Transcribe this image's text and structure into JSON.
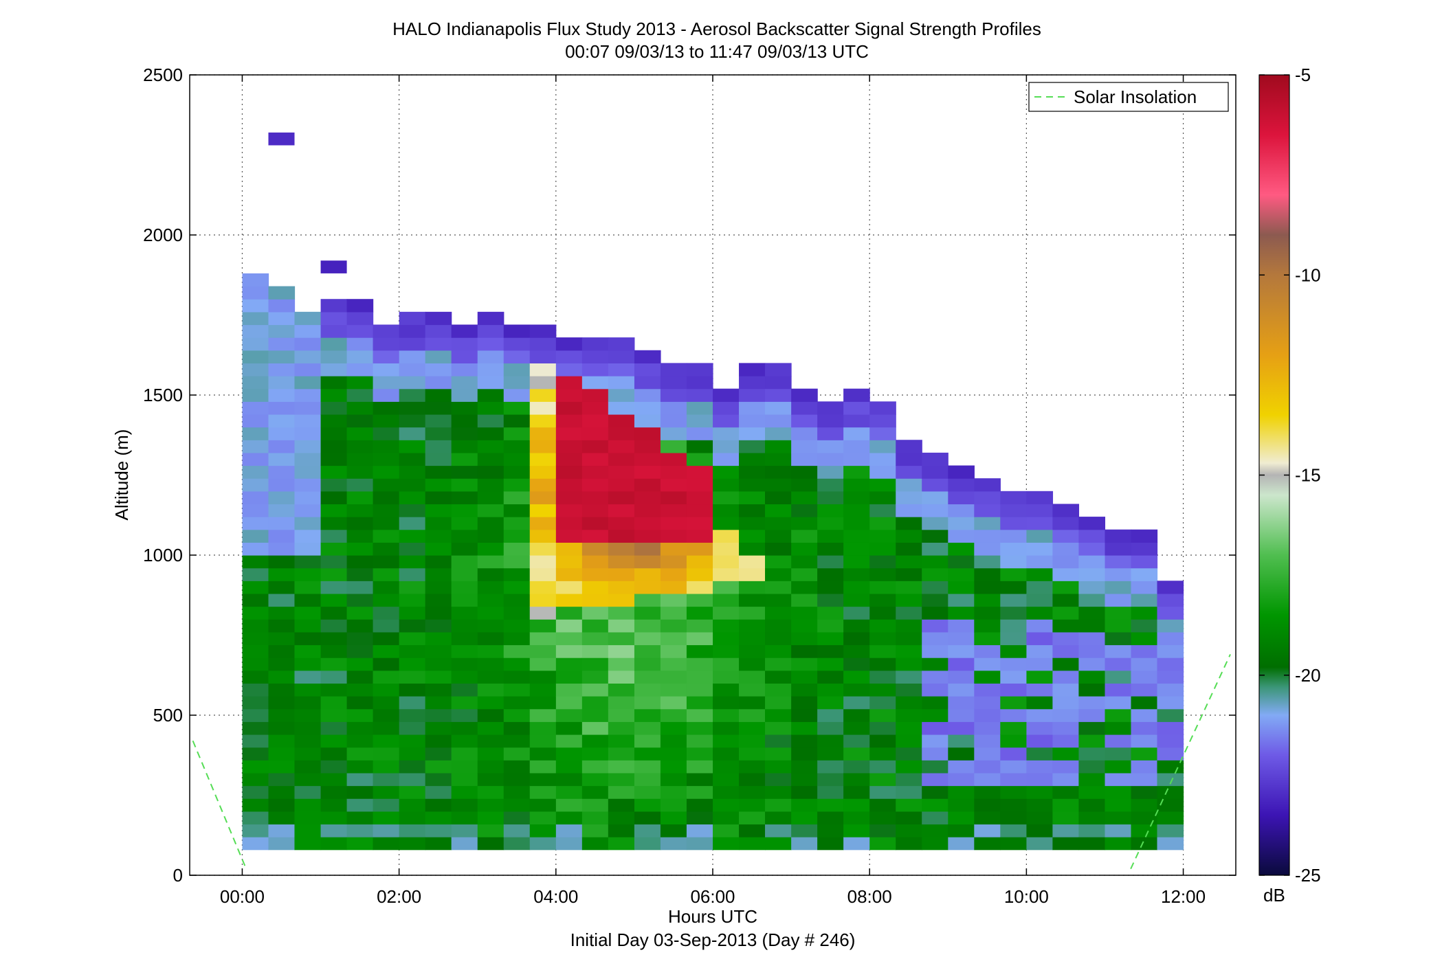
{
  "chart_data": {
    "type": "heatmap",
    "title": "HALO Indianapolis Flux Study 2013 - Aerosol Backscatter Signal Strength Profiles",
    "subtitle": "00:07 09/03/13 to 11:47 09/03/13  UTC",
    "xlabel": "Hours UTC",
    "xlabel2": "Initial Day 03-Sep-2013 (Day # 246)",
    "ylabel": "Altitude (m)",
    "xlim": [
      -0.67,
      12.67
    ],
    "ylim": [
      0,
      2500
    ],
    "x_ticks": [
      0,
      2,
      4,
      6,
      8,
      10,
      12
    ],
    "x_tick_labels": [
      "00:00",
      "02:00",
      "04:00",
      "06:00",
      "08:00",
      "10:00",
      "12:00"
    ],
    "y_ticks": [
      0,
      500,
      1000,
      1500,
      2000,
      2500
    ],
    "y_tick_labels": [
      "0",
      "500",
      "1000",
      "1500",
      "2000",
      "2500"
    ],
    "grid": true,
    "colorbar": {
      "label": "dB",
      "min": -25,
      "max": -5,
      "ticks": [
        -25,
        -20,
        -15,
        -10,
        -5
      ],
      "tick_labels": [
        "-25",
        "-20",
        "-15",
        "-10",
        "-5"
      ],
      "stops": [
        [
          -25,
          "#0a0a3c"
        ],
        [
          -23.5,
          "#3c14b4"
        ],
        [
          -22,
          "#6e5ae6"
        ],
        [
          -21,
          "#82aaf5"
        ],
        [
          -20.3,
          "#3c9678"
        ],
        [
          -19.8,
          "#006e00"
        ],
        [
          -18.5,
          "#009600"
        ],
        [
          -17,
          "#50be50"
        ],
        [
          -15.5,
          "#cce6cc"
        ],
        [
          -15,
          "#b4b4b4"
        ],
        [
          -14.7,
          "#f0ecd2"
        ],
        [
          -13.5,
          "#f0d200"
        ],
        [
          -12,
          "#e6a014"
        ],
        [
          -10,
          "#b4783c"
        ],
        [
          -9,
          "#8c5a50"
        ],
        [
          -8,
          "#ff5a82"
        ],
        [
          -6.5,
          "#dc143c"
        ],
        [
          -5,
          "#a00a1e"
        ]
      ]
    },
    "cells": {
      "time_step_hours": 0.3333,
      "altitude_step_m": 40,
      "altitude_start_m": 80,
      "profiles": [
        {
          "t": 0.167,
          "top": 1880
        },
        {
          "t": 0.5,
          "top": 1840
        },
        {
          "t": 0.833,
          "top": 1760
        },
        {
          "t": 1.167,
          "top": 1800
        },
        {
          "t": 1.5,
          "top": 1800
        },
        {
          "t": 1.833,
          "top": 1720
        },
        {
          "t": 2.167,
          "top": 1760
        },
        {
          "t": 2.5,
          "top": 1760
        },
        {
          "t": 2.833,
          "top": 1720
        },
        {
          "t": 3.167,
          "top": 1760
        },
        {
          "t": 3.5,
          "top": 1720
        },
        {
          "t": 3.833,
          "top": 1720
        },
        {
          "t": 4.167,
          "top": 1680
        },
        {
          "t": 4.5,
          "top": 1680
        },
        {
          "t": 4.833,
          "top": 1680
        },
        {
          "t": 5.167,
          "top": 1640
        },
        {
          "t": 5.5,
          "top": 1600
        },
        {
          "t": 5.833,
          "top": 1600
        },
        {
          "t": 6.167,
          "top": 1520
        },
        {
          "t": 6.5,
          "top": 1600
        },
        {
          "t": 6.833,
          "top": 1600
        },
        {
          "t": 7.167,
          "top": 1520
        },
        {
          "t": 7.5,
          "top": 1480
        },
        {
          "t": 7.833,
          "top": 1520
        },
        {
          "t": 8.167,
          "top": 1480
        },
        {
          "t": 8.5,
          "top": 1360
        },
        {
          "t": 8.833,
          "top": 1320
        },
        {
          "t": 9.167,
          "top": 1280
        },
        {
          "t": 9.5,
          "top": 1240
        },
        {
          "t": 9.833,
          "top": 1200
        },
        {
          "t": 10.167,
          "top": 1200
        },
        {
          "t": 10.5,
          "top": 1160
        },
        {
          "t": 10.833,
          "top": 1120
        },
        {
          "t": 11.167,
          "top": 1080
        },
        {
          "t": 11.5,
          "top": 1080
        },
        {
          "t": 11.833,
          "top": 920
        }
      ],
      "isolated": [
        {
          "t": 0.5,
          "alt": 2280,
          "db": -23
        },
        {
          "t": 1.167,
          "alt": 1880,
          "db": -23.2
        }
      ]
    },
    "series": [
      {
        "name": "Solar Insolation",
        "style": "dashed",
        "color": "#55dd55",
        "segments": [
          [
            [
              -0.63,
              420
            ],
            [
              0.05,
              20
            ]
          ],
          [
            [
              11.33,
              20
            ],
            [
              12.6,
              690
            ]
          ]
        ]
      }
    ],
    "legend": {
      "placement": "top-right",
      "entries": [
        "Solar Insolation"
      ]
    }
  }
}
